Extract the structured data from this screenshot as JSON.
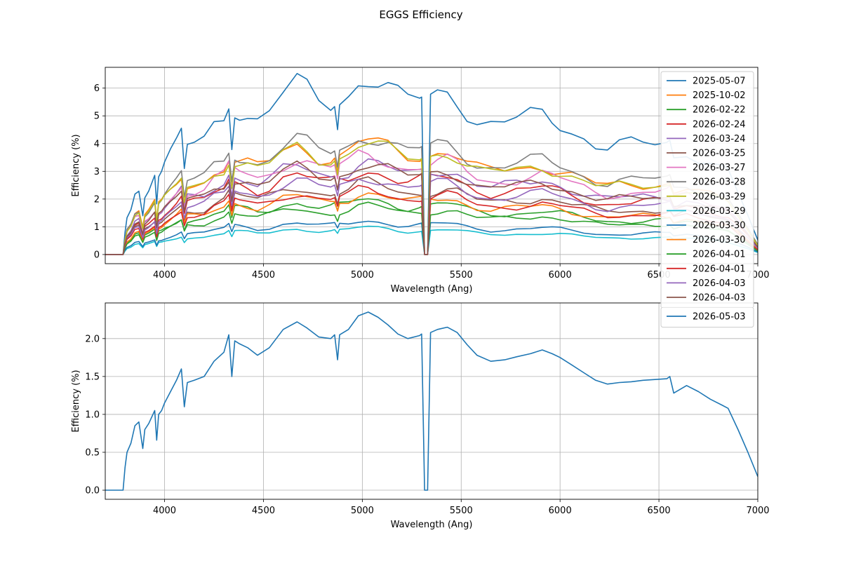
{
  "suptitle": "EGGS Efficiency",
  "chart_data": [
    {
      "type": "line",
      "xlabel": "Wavelength (Ang)",
      "ylabel": "Efficiency (%)",
      "xlim": [
        3700,
        7000
      ],
      "ylim": [
        -0.33,
        6.75
      ],
      "xticks": [
        4000,
        4500,
        5000,
        5500,
        6000,
        6500,
        7000
      ],
      "yticks": [
        0,
        1,
        2,
        3,
        4,
        5,
        6
      ],
      "grid": true,
      "legend_position": "upper-right",
      "series": [
        {
          "name": "2025-05-07",
          "color": "#1f77b4",
          "scale": 2.74
        },
        {
          "name": "2025-10-02",
          "color": "#ff7f0e",
          "scale": 1.75
        },
        {
          "name": "2026-02-22",
          "color": "#2ca02c",
          "scale": 0.85
        },
        {
          "name": "2026-02-24",
          "color": "#d62728",
          "scale": 1.3
        },
        {
          "name": "2026-03-24",
          "color": "#9467bd",
          "scale": 1.43
        },
        {
          "name": "2026-03-25",
          "color": "#8c564b",
          "scale": 1.1
        },
        {
          "name": "2026-03-27",
          "color": "#e377c2",
          "scale": 1.55
        },
        {
          "name": "2026-03-28",
          "color": "#7f7f7f",
          "scale": 1.85
        },
        {
          "name": "2026-03-29",
          "color": "#bcbd22",
          "scale": 1.72
        },
        {
          "name": "2026-03-29",
          "color": "#17becf",
          "scale": 0.42
        },
        {
          "name": "2026-03-30",
          "color": "#1f77b4",
          "scale": 0.52
        },
        {
          "name": "2026-03-30",
          "color": "#ff7f0e",
          "scale": 0.95
        },
        {
          "name": "2026-04-01",
          "color": "#2ca02c",
          "scale": 0.75
        },
        {
          "name": "2026-04-01",
          "color": "#d62728",
          "scale": 1.0
        },
        {
          "name": "2026-04-03",
          "color": "#9467bd",
          "scale": 1.2
        },
        {
          "name": "2026-04-03",
          "color": "#8c564b",
          "scale": 1.4
        }
      ],
      "base_profile": {
        "x": [
          3700,
          3790,
          3800,
          3810,
          3830,
          3850,
          3870,
          3890,
          3900,
          3920,
          3950,
          3960,
          3970,
          3985,
          4000,
          4030,
          4060,
          4085,
          4100,
          4115,
          4150,
          4200,
          4250,
          4300,
          4325,
          4340,
          4355,
          4380,
          4420,
          4470,
          4530,
          4600,
          4670,
          4720,
          4780,
          4840,
          4860,
          4875,
          4885,
          4930,
          4980,
          5030,
          5080,
          5130,
          5180,
          5230,
          5290,
          5300,
          5315,
          5330,
          5345,
          5380,
          5430,
          5480,
          5530,
          5580,
          5650,
          5720,
          5780,
          5850,
          5910,
          5960,
          6000,
          6060,
          6120,
          6180,
          6240,
          6300,
          6360,
          6420,
          6480,
          6540,
          6555,
          6575,
          6640,
          6700,
          6760,
          6820,
          6850,
          6900,
          6950,
          7000
        ],
        "y": [
          0,
          0,
          0.3,
          0.5,
          0.62,
          0.85,
          0.9,
          0.55,
          0.8,
          0.88,
          1.05,
          0.66,
          1.0,
          1.05,
          1.15,
          1.3,
          1.45,
          1.6,
          1.1,
          1.42,
          1.45,
          1.5,
          1.7,
          1.82,
          2.05,
          1.5,
          1.97,
          1.93,
          1.88,
          1.78,
          1.88,
          2.12,
          2.22,
          2.14,
          2.02,
          2.0,
          2.05,
          1.72,
          2.05,
          2.12,
          2.3,
          2.35,
          2.28,
          2.18,
          2.06,
          2.0,
          2.04,
          2.06,
          0,
          0,
          2.08,
          2.12,
          2.15,
          2.08,
          1.92,
          1.78,
          1.7,
          1.72,
          1.76,
          1.8,
          1.85,
          1.8,
          1.75,
          1.65,
          1.55,
          1.45,
          1.4,
          1.42,
          1.43,
          1.45,
          1.46,
          1.47,
          1.5,
          1.28,
          1.38,
          1.3,
          1.2,
          1.12,
          1.08,
          0.8,
          0.5,
          0.18
        ]
      }
    },
    {
      "type": "line",
      "xlabel": "Wavelength (Ang)",
      "ylabel": "Efficiency (%)",
      "xlim": [
        3700,
        7000
      ],
      "ylim": [
        -0.12,
        2.47
      ],
      "xticks": [
        4000,
        4500,
        5000,
        5500,
        6000,
        6500,
        7000
      ],
      "yticks": [
        0.0,
        0.5,
        1.0,
        1.5,
        2.0
      ],
      "ytick_labels": [
        "0.0",
        "0.5",
        "1.0",
        "1.5",
        "2.0"
      ],
      "grid": true,
      "legend_position": "upper-right",
      "series": [
        {
          "name": "2026-05-03",
          "color": "#1f77b4",
          "x": [
            3700,
            3790,
            3800,
            3810,
            3830,
            3850,
            3870,
            3890,
            3900,
            3920,
            3950,
            3960,
            3970,
            3985,
            4000,
            4030,
            4060,
            4085,
            4100,
            4115,
            4150,
            4200,
            4250,
            4300,
            4325,
            4340,
            4355,
            4380,
            4420,
            4470,
            4530,
            4600,
            4670,
            4720,
            4780,
            4840,
            4860,
            4875,
            4885,
            4930,
            4980,
            5030,
            5080,
            5130,
            5180,
            5230,
            5290,
            5300,
            5315,
            5330,
            5345,
            5380,
            5430,
            5480,
            5530,
            5580,
            5650,
            5720,
            5780,
            5850,
            5910,
            5960,
            6000,
            6060,
            6120,
            6180,
            6240,
            6300,
            6360,
            6420,
            6480,
            6540,
            6555,
            6575,
            6640,
            6700,
            6760,
            6820,
            6850,
            6900,
            6950,
            7000
          ],
          "y": [
            0,
            0,
            0.3,
            0.5,
            0.62,
            0.85,
            0.9,
            0.55,
            0.8,
            0.88,
            1.05,
            0.66,
            1.0,
            1.05,
            1.15,
            1.3,
            1.45,
            1.6,
            1.1,
            1.42,
            1.45,
            1.5,
            1.7,
            1.82,
            2.05,
            1.5,
            1.97,
            1.93,
            1.88,
            1.78,
            1.88,
            2.12,
            2.22,
            2.14,
            2.02,
            2.0,
            2.05,
            1.72,
            2.05,
            2.12,
            2.3,
            2.35,
            2.28,
            2.18,
            2.06,
            2.0,
            2.04,
            2.06,
            0,
            0,
            2.08,
            2.12,
            2.15,
            2.08,
            1.92,
            1.78,
            1.7,
            1.72,
            1.76,
            1.8,
            1.85,
            1.8,
            1.75,
            1.65,
            1.55,
            1.45,
            1.4,
            1.42,
            1.43,
            1.45,
            1.46,
            1.47,
            1.5,
            1.28,
            1.38,
            1.3,
            1.2,
            1.12,
            1.08,
            0.8,
            0.5,
            0.18
          ]
        }
      ]
    }
  ]
}
